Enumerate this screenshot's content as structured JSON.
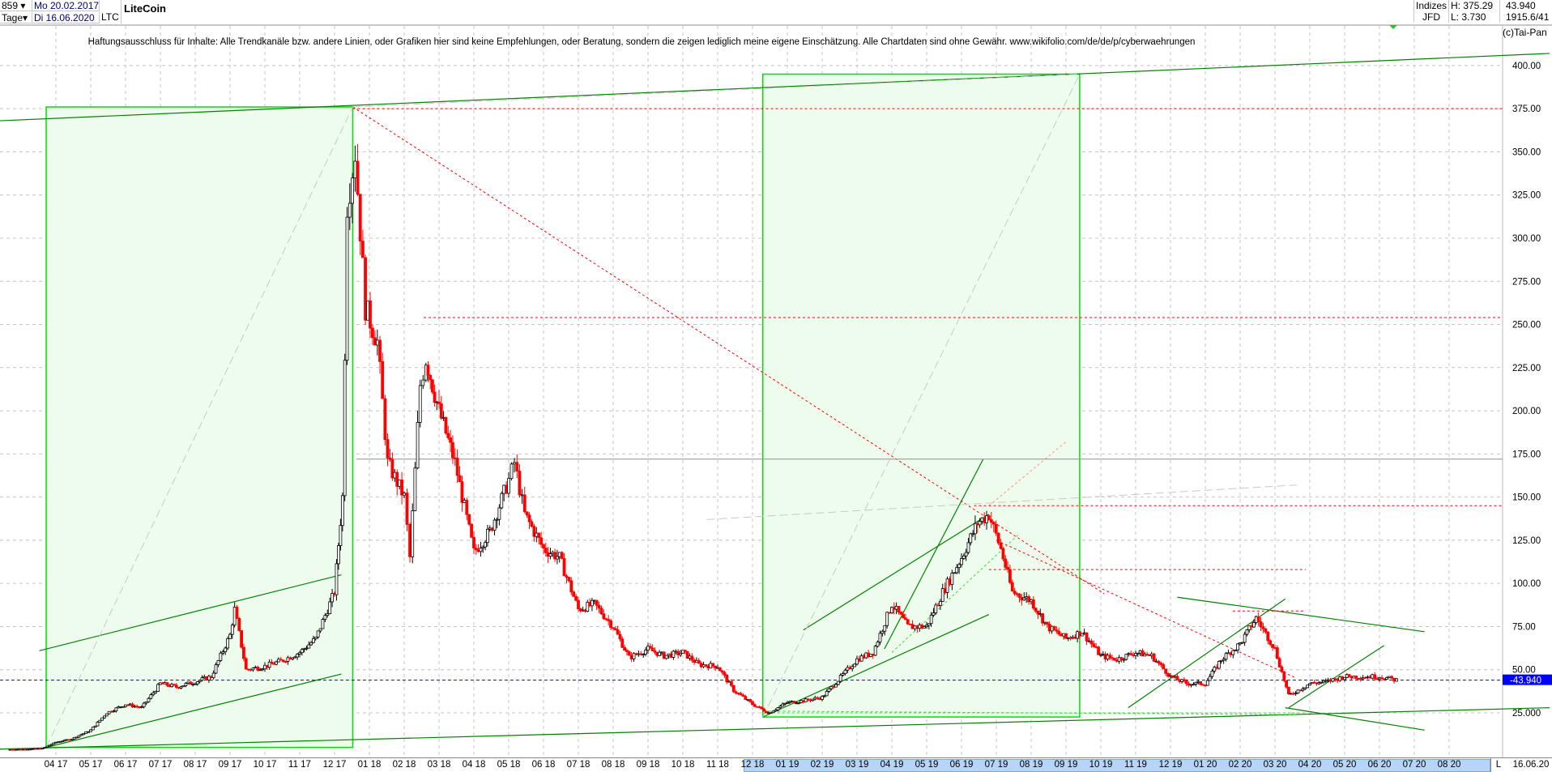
{
  "header": {
    "count": "859",
    "period": "Tage",
    "date_from": "Mo 20.02.2017",
    "date_to": "Di 16.06.2020",
    "symbol": "LTC",
    "title": "LiteCoin",
    "market": "Indizes",
    "broker": "JFD",
    "high": "H: 375.29",
    "low": "L: 3.730",
    "last": "43.940",
    "coords": "1915.6/41",
    "copyright": "(c)Tai-Pan"
  },
  "disclaimer": "Haftungsausschluss für Inhalte: Alle Trendkanäle bzw. andere Linien, oder Grafiken hier sind keine Empfehlungen, oder Beratung, sondern die zeigen lediglich meine eigene Einschätzung. Alle Chartdaten sind ohne Gewähr.  www.wikifolio.com/de/de/p/cyberwaehrungen",
  "footer": {
    "mode": "L",
    "date": "16.06.20"
  },
  "colors": {
    "up": "#000000",
    "down": "#ff0000",
    "trend": "#008000",
    "box": "#00e000",
    "box_fill": "#eefcee",
    "resistance": "#ff0000",
    "last_price": "#0000ff"
  },
  "chart_data": {
    "type": "candlestick",
    "title": "LiteCoin",
    "ylim": [
      0,
      410
    ],
    "yticks": [
      "400.00",
      "375.00",
      "350.00",
      "325.00",
      "300.00",
      "275.00",
      "250.00",
      "225.00",
      "200.00",
      "175.00",
      "150.00",
      "125.00",
      "100.00",
      "75.00",
      "50.00",
      "25.000"
    ],
    "ytick_values": [
      400,
      375,
      350,
      325,
      300,
      275,
      250,
      225,
      200,
      175,
      150,
      125,
      100,
      75,
      50,
      25
    ],
    "xticks": [
      "04 17",
      "05 17",
      "06 17",
      "07 17",
      "08 17",
      "09 17",
      "10 17",
      "11 17",
      "12 17",
      "01 18",
      "02 18",
      "03 18",
      "04 18",
      "05 18",
      "06 18",
      "07 18",
      "08 18",
      "09 18",
      "10 18",
      "11 18",
      "12 18",
      "01 19",
      "02 19",
      "03 19",
      "04 19",
      "05 19",
      "06 19",
      "07 19",
      "08 19",
      "09 19",
      "10 19",
      "11 19",
      "12 19",
      "01 20",
      "02 20",
      "03 20",
      "04 20",
      "05 20",
      "06 20",
      "07 20",
      "08 20"
    ],
    "grid": true,
    "last_price": 43.94,
    "last_price_label": "43.940",
    "closes": [
      [
        "2017-02-20",
        3.8
      ],
      [
        "2017-03-05",
        3.9
      ],
      [
        "2017-03-20",
        4.5
      ],
      [
        "2017-04-01",
        8
      ],
      [
        "2017-04-15",
        10
      ],
      [
        "2017-05-01",
        15
      ],
      [
        "2017-05-15",
        25
      ],
      [
        "2017-06-01",
        30
      ],
      [
        "2017-06-15",
        28
      ],
      [
        "2017-07-01",
        42
      ],
      [
        "2017-07-15",
        40
      ],
      [
        "2017-08-01",
        43
      ],
      [
        "2017-08-15",
        46
      ],
      [
        "2017-09-01",
        70
      ],
      [
        "2017-09-05",
        85
      ],
      [
        "2017-09-15",
        50
      ],
      [
        "2017-10-01",
        52
      ],
      [
        "2017-10-15",
        55
      ],
      [
        "2017-11-01",
        60
      ],
      [
        "2017-11-15",
        68
      ],
      [
        "2017-12-01",
        95
      ],
      [
        "2017-12-08",
        150
      ],
      [
        "2017-12-12",
        320
      ],
      [
        "2017-12-19",
        350
      ],
      [
        "2017-12-28",
        260
      ],
      [
        "2018-01-08",
        240
      ],
      [
        "2018-01-17",
        170
      ],
      [
        "2018-02-01",
        150
      ],
      [
        "2018-02-06",
        115
      ],
      [
        "2018-02-15",
        215
      ],
      [
        "2018-02-20",
        230
      ],
      [
        "2018-03-01",
        200
      ],
      [
        "2018-03-15",
        170
      ],
      [
        "2018-04-01",
        118
      ],
      [
        "2018-04-15",
        130
      ],
      [
        "2018-05-01",
        160
      ],
      [
        "2018-05-06",
        170
      ],
      [
        "2018-05-15",
        140
      ],
      [
        "2018-06-01",
        120
      ],
      [
        "2018-06-15",
        115
      ],
      [
        "2018-07-01",
        85
      ],
      [
        "2018-07-15",
        88
      ],
      [
        "2018-08-01",
        75
      ],
      [
        "2018-08-15",
        57
      ],
      [
        "2018-09-01",
        62
      ],
      [
        "2018-09-15",
        58
      ],
      [
        "2018-10-01",
        60
      ],
      [
        "2018-10-15",
        53
      ],
      [
        "2018-11-01",
        52
      ],
      [
        "2018-11-15",
        38
      ],
      [
        "2018-12-01",
        30
      ],
      [
        "2018-12-15",
        25
      ],
      [
        "2019-01-01",
        31
      ],
      [
        "2019-01-15",
        32
      ],
      [
        "2019-02-01",
        34
      ],
      [
        "2019-02-15",
        44
      ],
      [
        "2019-03-01",
        56
      ],
      [
        "2019-03-15",
        60
      ],
      [
        "2019-04-01",
        88
      ],
      [
        "2019-04-15",
        75
      ],
      [
        "2019-05-01",
        75
      ],
      [
        "2019-05-15",
        95
      ],
      [
        "2019-06-01",
        115
      ],
      [
        "2019-06-15",
        135
      ],
      [
        "2019-06-25",
        140
      ],
      [
        "2019-07-05",
        120
      ],
      [
        "2019-07-15",
        95
      ],
      [
        "2019-08-01",
        90
      ],
      [
        "2019-08-15",
        75
      ],
      [
        "2019-09-01",
        68
      ],
      [
        "2019-09-15",
        72
      ],
      [
        "2019-10-01",
        58
      ],
      [
        "2019-10-15",
        56
      ],
      [
        "2019-11-01",
        60
      ],
      [
        "2019-11-15",
        58
      ],
      [
        "2019-12-01",
        46
      ],
      [
        "2019-12-15",
        42
      ],
      [
        "2020-01-01",
        42
      ],
      [
        "2020-01-15",
        56
      ],
      [
        "2020-02-01",
        65
      ],
      [
        "2020-02-15",
        80
      ],
      [
        "2020-03-01",
        62
      ],
      [
        "2020-03-13",
        35
      ],
      [
        "2020-04-01",
        42
      ],
      [
        "2020-04-15",
        43
      ],
      [
        "2020-05-01",
        46
      ],
      [
        "2020-05-15",
        46
      ],
      [
        "2020-06-01",
        46
      ],
      [
        "2020-06-16",
        43.94
      ]
    ],
    "annotations": {
      "boxes": [
        {
          "from": "2017-03-23",
          "to": "2017-12-17",
          "low": 5,
          "high": 376
        },
        {
          "from": "2018-12-10",
          "to": "2019-09-13",
          "low": 22.6,
          "high": 395
        }
      ],
      "trendlines": [
        {
          "start": [
            "2017-02-13",
            368
          ],
          "end": [
            "2020-10-28",
            407
          ],
          "style": "green"
        },
        {
          "start": [
            "2017-02-13",
            4
          ],
          "end": [
            "2020-10-28",
            28
          ],
          "style": "green"
        },
        {
          "start": [
            "2017-03-23",
            5
          ],
          "end": [
            "2017-12-07",
            47.5
          ],
          "style": "green"
        },
        {
          "start": [
            "2017-03-17",
            61
          ],
          "end": [
            "2017-12-07",
            105
          ],
          "style": "green"
        },
        {
          "start": [
            "2019-01-15",
            73
          ],
          "end": [
            "2019-06-25",
            140
          ],
          "style": "green"
        },
        {
          "start": [
            "2018-12-10",
            22.6
          ],
          "end": [
            "2019-06-25",
            82
          ],
          "style": "green"
        },
        {
          "start": [
            "2019-12-07",
            92
          ],
          "end": [
            "2020-07-10",
            72
          ],
          "style": "green"
        },
        {
          "start": [
            "2020-03-10",
            28
          ],
          "end": [
            "2020-07-10",
            15
          ],
          "style": "green"
        },
        {
          "start": [
            "2019-10-25",
            28
          ],
          "end": [
            "2020-03-10",
            91
          ],
          "style": "green"
        },
        {
          "start": [
            "2020-03-13",
            28
          ],
          "end": [
            "2020-06-05",
            64
          ],
          "style": "green"
        },
        {
          "start": [
            "2019-03-25",
            62
          ],
          "end": [
            "2019-06-20",
            172
          ],
          "style": "green"
        },
        {
          "start": [
            "2017-12-17",
            376
          ],
          "end": [
            "2019-10-04",
            94
          ],
          "style": "red-dash"
        },
        {
          "start": [
            "2019-07-01",
            125
          ],
          "end": [
            "2020-03-20",
            45
          ],
          "style": "red-dash"
        },
        {
          "start": [
            "2019-06-25",
            145
          ],
          "end": [
            "2019-09-01",
            182
          ],
          "style": "pink-dash"
        },
        {
          "start": [
            "2017-03-23",
            5
          ],
          "end": [
            "2017-12-17",
            376
          ],
          "style": "gray-dash"
        },
        {
          "start": [
            "2018-12-10",
            22.6
          ],
          "end": [
            "2019-09-13",
            395
          ],
          "style": "gray-dash"
        },
        {
          "start": [
            "2018-10-22",
            137
          ],
          "end": [
            "2020-03-20",
            157
          ],
          "style": "gray-dash"
        },
        {
          "start": [
            "2017-12-17",
            376
          ],
          "end": [
            "2019-09-13",
            395
          ],
          "style": "gray-dash"
        },
        {
          "start": [
            "2018-12-15",
            26
          ],
          "end": [
            "2020-03-20",
            24
          ],
          "style": "lime-dash"
        },
        {
          "start": [
            "2019-04-01",
            60
          ],
          "end": [
            "2019-07-20",
            128
          ],
          "style": "lime-dash"
        }
      ],
      "horizontals": [
        {
          "price": 375,
          "from": "2017-12-17",
          "style": "red-dash"
        },
        {
          "price": 254,
          "from": "2018-02-18",
          "style": "red-dash"
        },
        {
          "price": 172,
          "from": "2017-12-20",
          "style": "gray"
        },
        {
          "price": 145,
          "from": "2019-06-12",
          "style": "red-dash"
        },
        {
          "price": 108,
          "from": "2019-06-25",
          "to": "2020-03-28",
          "style": "red-dash"
        },
        {
          "price": 84,
          "from": "2020-01-25",
          "to": "2020-03-28",
          "style": "red-dash"
        },
        {
          "price": 25,
          "from": "2018-12-10",
          "to": "2020-03-28",
          "style": "lime-dash"
        },
        {
          "price": 43.94,
          "from": "2017-02-13",
          "style": "blue-dash"
        }
      ]
    }
  }
}
